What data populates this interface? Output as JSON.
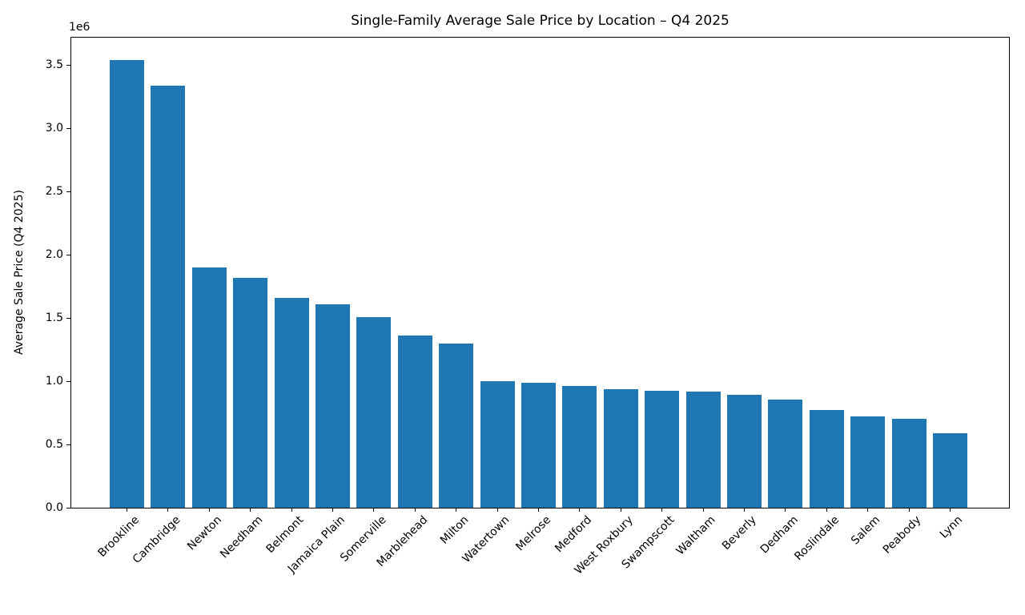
{
  "figure": {
    "background": "#ffffff",
    "text_color": "#000000"
  },
  "chart_data": {
    "type": "bar",
    "title": "Single-Family Average Sale Price by Location – Q4 2025",
    "xlabel": "",
    "ylabel": "Average Sale Price (Q4 2025)",
    "offset_label": "1e6",
    "categories": [
      "Brookline",
      "Cambridge",
      "Newton",
      "Needham",
      "Belmont",
      "Jamaica Plain",
      "Somerville",
      "Marblehead",
      "Milton",
      "Watertown",
      "Melrose",
      "Medford",
      "West Roxbury",
      "Swampscott",
      "Waltham",
      "Beverly",
      "Dedham",
      "Roslindale",
      "Salem",
      "Peabody",
      "Lynn"
    ],
    "values": [
      3540000,
      3340000,
      1900000,
      1820000,
      1660000,
      1610000,
      1510000,
      1360000,
      1300000,
      1000000,
      990000,
      960000,
      935000,
      925000,
      920000,
      890000,
      855000,
      775000,
      720000,
      700000,
      590000
    ],
    "ylim": [
      0,
      3717000
    ],
    "ytick_values": [
      0,
      500000,
      1000000,
      1500000,
      2000000,
      2500000,
      3000000,
      3500000
    ],
    "ytick_labels": [
      "0.0",
      "0.5",
      "1.0",
      "1.5",
      "2.0",
      "2.5",
      "3.0",
      "3.5"
    ],
    "bar_color": "#1f77b4",
    "grid": false,
    "legend": false,
    "x_tick_rotation": 45
  }
}
